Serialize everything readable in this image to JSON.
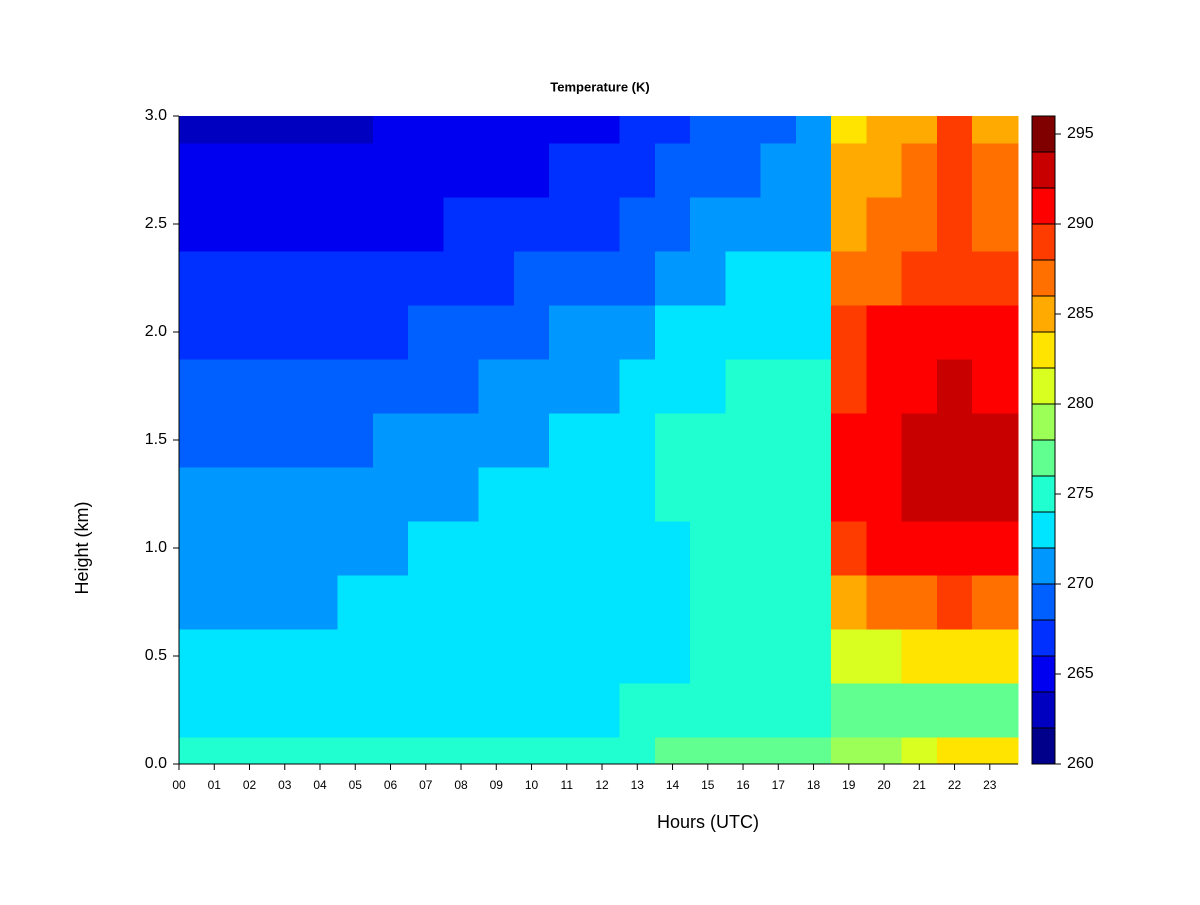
{
  "chart_data": {
    "type": "heatmap",
    "title": "Temperature (K)",
    "x_label": "Hours (UTC)",
    "y_label": "Height (km)",
    "x": [
      0,
      1,
      2,
      3,
      4,
      5,
      6,
      7,
      8,
      9,
      10,
      11,
      12,
      13,
      14,
      15,
      16,
      17,
      18,
      19,
      20,
      21,
      22,
      23
    ],
    "y": [
      0,
      0.25,
      0.5,
      0.75,
      1,
      1.25,
      1.5,
      1.75,
      2,
      2.25,
      2.5,
      2.75,
      3
    ],
    "z": [
      [
        275,
        273,
        272,
        271,
        270.5,
        270,
        269,
        268,
        267,
        266,
        265,
        264,
        263
      ],
      [
        275,
        273,
        272,
        271,
        270.5,
        270,
        269,
        268,
        267,
        266,
        265,
        264,
        263
      ],
      [
        275,
        273,
        272,
        271,
        270.5,
        270,
        269,
        268,
        267,
        266,
        264.5,
        264,
        263
      ],
      [
        275,
        273,
        272,
        271.5,
        271,
        270,
        269,
        268,
        267,
        266,
        265,
        264,
        263
      ],
      [
        275,
        273,
        272,
        271.5,
        271,
        270.5,
        269.5,
        268,
        267,
        266,
        265,
        264,
        263.5
      ],
      [
        275,
        273,
        272.5,
        272,
        271.5,
        270.5,
        269.5,
        268.5,
        267,
        266,
        265,
        264,
        263.5
      ],
      [
        275,
        273,
        272.5,
        272,
        271.5,
        271,
        270,
        268.5,
        267.5,
        266.5,
        265,
        264.5,
        264
      ],
      [
        275,
        273,
        273,
        272.5,
        272,
        271,
        270,
        269,
        268,
        267,
        265.5,
        265,
        264
      ],
      [
        275,
        273,
        273,
        272.5,
        272,
        271.5,
        270.5,
        269,
        268,
        267,
        266,
        265,
        264
      ],
      [
        275,
        273,
        273,
        273,
        272.5,
        272,
        271,
        270,
        268.5,
        267.5,
        266,
        265,
        264.5
      ],
      [
        275,
        273.5,
        273,
        273,
        273,
        272.5,
        271.5,
        270.5,
        269,
        268,
        266.5,
        265.5,
        265
      ],
      [
        275,
        273.5,
        273,
        273,
        273,
        272.5,
        272,
        271,
        270,
        268.5,
        267,
        266,
        265
      ],
      [
        275.5,
        273.5,
        273,
        273,
        273,
        273,
        272.5,
        271.5,
        270,
        269,
        267.5,
        266.5,
        265.5
      ],
      [
        275.5,
        274,
        273.5,
        273.5,
        273.5,
        273.5,
        273,
        272,
        271,
        269.5,
        268,
        267,
        266
      ],
      [
        276,
        274,
        273.5,
        273.5,
        273.5,
        274,
        274,
        273,
        272,
        271,
        269,
        268,
        267
      ],
      [
        276,
        274,
        274,
        274,
        274,
        274,
        274,
        273.5,
        272.5,
        271.5,
        270,
        269,
        268
      ],
      [
        276.5,
        274.5,
        274,
        274.5,
        274.5,
        274.5,
        274.5,
        274,
        273,
        272,
        270.5,
        269.5,
        268.5
      ],
      [
        277,
        275,
        274,
        274.5,
        274.5,
        274.5,
        274.5,
        274,
        273,
        272,
        271,
        270,
        269
      ],
      [
        277,
        275,
        274.5,
        274.5,
        274.5,
        274.5,
        274.5,
        274,
        273.5,
        272.5,
        271.5,
        270.5,
        270
      ],
      [
        279,
        276,
        281,
        285,
        289,
        291,
        290,
        289,
        288,
        286,
        285,
        284,
        283
      ],
      [
        279,
        276,
        281,
        286,
        290,
        291,
        290,
        290,
        290,
        287,
        286,
        285,
        284
      ],
      [
        280,
        277,
        282,
        287,
        290,
        292,
        292,
        291,
        290,
        288,
        287,
        286,
        285
      ],
      [
        282,
        277,
        283,
        288,
        291,
        293,
        293,
        292,
        291,
        289,
        288,
        288,
        288
      ],
      [
        282,
        277,
        283,
        287,
        291,
        292,
        292,
        291,
        290,
        288,
        287,
        286,
        285
      ]
    ],
    "xlim": [
      0,
      23.8
    ],
    "ylim": [
      0,
      3
    ],
    "xticks": [
      {
        "value": 0,
        "label": "00"
      },
      {
        "value": 1,
        "label": "01"
      },
      {
        "value": 2,
        "label": "02"
      },
      {
        "value": 3,
        "label": "03"
      },
      {
        "value": 4,
        "label": "04"
      },
      {
        "value": 5,
        "label": "05"
      },
      {
        "value": 6,
        "label": "06"
      },
      {
        "value": 7,
        "label": "07"
      },
      {
        "value": 8,
        "label": "08"
      },
      {
        "value": 9,
        "label": "09"
      },
      {
        "value": 10,
        "label": "10"
      },
      {
        "value": 11,
        "label": "11"
      },
      {
        "value": 12,
        "label": "12"
      },
      {
        "value": 13,
        "label": "13"
      },
      {
        "value": 14,
        "label": "14"
      },
      {
        "value": 15,
        "label": "15"
      },
      {
        "value": 16,
        "label": "16"
      },
      {
        "value": 17,
        "label": "17"
      },
      {
        "value": 18,
        "label": "18"
      },
      {
        "value": 19,
        "label": "19"
      },
      {
        "value": 20,
        "label": "20"
      },
      {
        "value": 21,
        "label": "21"
      },
      {
        "value": 22,
        "label": "22"
      },
      {
        "value": 23,
        "label": "23"
      }
    ],
    "yticks": [
      {
        "value": 0,
        "label": "0.0"
      },
      {
        "value": 0.5,
        "label": "0.5"
      },
      {
        "value": 1,
        "label": "1.0"
      },
      {
        "value": 1.5,
        "label": "1.5"
      },
      {
        "value": 2,
        "label": "2.0"
      },
      {
        "value": 2.5,
        "label": "2.5"
      },
      {
        "value": 3,
        "label": "3.0"
      }
    ],
    "colorbar": {
      "levels": [
        260,
        262,
        264,
        266,
        268,
        270,
        272,
        274,
        276,
        278,
        280,
        282,
        284,
        286,
        288,
        290,
        292,
        294,
        296
      ],
      "colors": [
        "#00008b",
        "#0000c0",
        "#0000f0",
        "#0030ff",
        "#0060ff",
        "#0098ff",
        "#00e5ff",
        "#20ffd0",
        "#60ff90",
        "#9cff58",
        "#d8ff20",
        "#ffe400",
        "#ffaa00",
        "#ff7000",
        "#ff3c00",
        "#ff0000",
        "#c80000",
        "#800000"
      ],
      "ticks": [
        260,
        265,
        270,
        275,
        280,
        285,
        290,
        295
      ]
    }
  }
}
